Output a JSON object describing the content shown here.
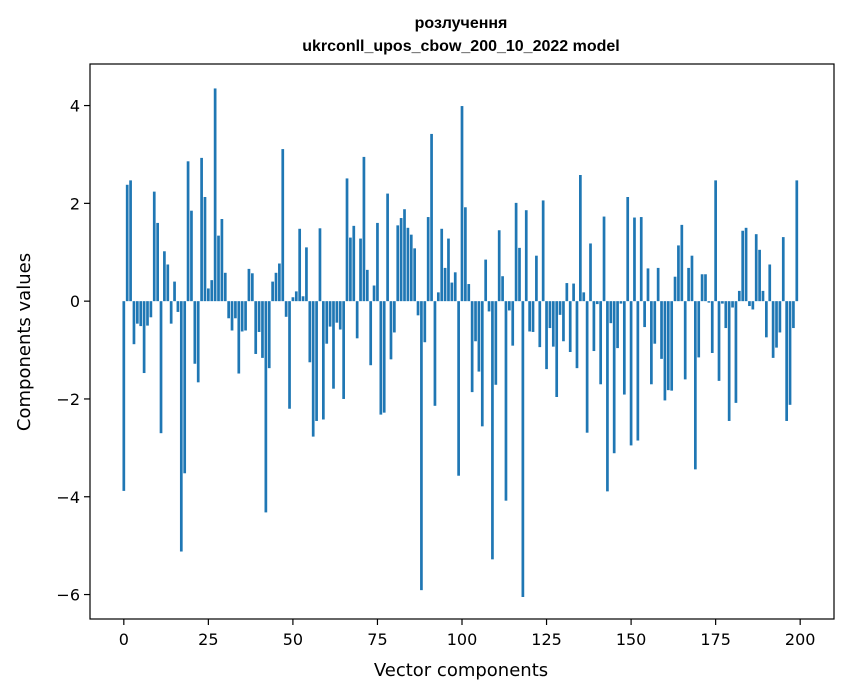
{
  "chart_data": {
    "type": "bar",
    "title": "розлучення",
    "subtitle": "ukrconll_upos_cbow_200_10_2022 model",
    "xlabel": "Vector components",
    "ylabel": "Components values",
    "xlim": [
      -10,
      210
    ],
    "ylim": [
      -6.5,
      4.85
    ],
    "xticks": [
      0,
      25,
      50,
      75,
      100,
      125,
      150,
      175,
      200
    ],
    "yticks": [
      -6,
      -4,
      -2,
      0,
      2,
      4
    ],
    "bar_color": "#1f77b4",
    "grid": false,
    "legend": "none",
    "values": [
      -3.88,
      2.38,
      2.47,
      -0.88,
      -0.46,
      -0.51,
      -1.47,
      -0.5,
      -0.33,
      2.24,
      1.6,
      -2.7,
      1.02,
      0.75,
      -0.46,
      0.4,
      -0.22,
      -5.12,
      -3.52,
      2.86,
      1.85,
      -1.28,
      -1.66,
      2.93,
      2.13,
      0.26,
      0.43,
      4.35,
      1.34,
      1.68,
      0.58,
      -0.35,
      -0.6,
      -0.35,
      -1.48,
      -0.62,
      -0.6,
      0.66,
      0.57,
      -1.08,
      -0.63,
      -1.16,
      -4.32,
      -1.37,
      0.4,
      0.58,
      0.77,
      3.11,
      -0.32,
      -2.2,
      0.08,
      0.2,
      1.48,
      0.1,
      1.1,
      -1.25,
      -2.77,
      -2.45,
      1.49,
      -2.42,
      -0.87,
      -0.52,
      -1.79,
      -0.44,
      -0.58,
      -2.0,
      2.51,
      1.3,
      1.54,
      -0.76,
      1.28,
      2.95,
      0.64,
      -1.31,
      0.32,
      1.6,
      -2.32,
      -2.28,
      2.2,
      -1.19,
      -0.64,
      1.55,
      1.7,
      1.88,
      1.5,
      1.36,
      1.08,
      -0.29,
      -5.91,
      -0.84,
      1.72,
      3.42,
      -2.14,
      0.18,
      1.48,
      0.68,
      1.28,
      0.38,
      0.59,
      -3.57,
      3.99,
      1.92,
      0.35,
      -1.86,
      -0.82,
      -1.44,
      -2.56,
      0.85,
      -0.21,
      -5.28,
      -1.71,
      1.45,
      0.51,
      -4.08,
      -0.19,
      -0.91,
      2.01,
      1.09,
      -6.05,
      1.86,
      -0.62,
      -0.63,
      0.93,
      -0.94,
      2.06,
      -1.39,
      -0.55,
      -0.93,
      -1.96,
      -0.28,
      -0.82,
      0.37,
      -1.04,
      0.36,
      -1.37,
      2.58,
      0.18,
      -2.69,
      1.18,
      -1.02,
      -0.06,
      -1.7,
      1.73,
      -3.89,
      -0.45,
      -3.11,
      -0.96,
      -0.05,
      -1.91,
      2.13,
      -2.95,
      1.71,
      -2.85,
      1.72,
      -0.53,
      0.67,
      -1.7,
      -0.87,
      0.68,
      -1.18,
      -2.03,
      -1.82,
      -1.83,
      0.5,
      1.14,
      1.56,
      -1.6,
      0.68,
      0.93,
      -3.44,
      -1.15,
      0.55,
      0.55,
      -0.03,
      -1.06,
      2.47,
      -1.63,
      -0.05,
      -0.55,
      -2.45,
      -0.13,
      -2.08,
      0.21,
      1.44,
      1.5,
      -0.1,
      -0.17,
      1.37,
      1.05,
      0.21,
      -0.74,
      0.75,
      -1.16,
      -0.95,
      -0.64,
      1.31,
      -2.45,
      -2.12,
      -0.55,
      2.47
    ]
  }
}
